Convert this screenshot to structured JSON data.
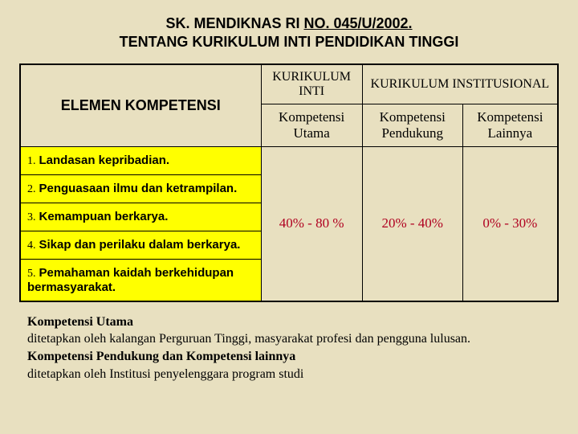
{
  "title_line1_a": "SK. MENDIKNAS RI ",
  "title_line1_b": "NO. 045/U/2002.",
  "title_line2": "TENTANG KURIKULUM INTI PENDIDIKAN TINGGI",
  "header_left": "ELEMEN KOMPETENSI",
  "group1": "KURIKULUM INTI",
  "group2": "KURIKULUM INSTITUSIONAL",
  "sub1": "Kompetensi Utama",
  "sub2": "Kompetensi Pendukung",
  "sub3": "Kompetensi Lainnya",
  "rows": [
    {
      "num": "1.",
      "text": "Landasan kepribadian."
    },
    {
      "num": "2.",
      "text": "Penguasaan ilmu dan ketrampilan."
    },
    {
      "num": "3.",
      "text": "Kemampuan berkarya."
    },
    {
      "num": "4.",
      "text": "Sikap dan perilaku dalam berkarya."
    },
    {
      "num": "5.",
      "text": "Pemahaman kaidah berkehidupan bermasyarakat."
    }
  ],
  "pct1": "40% - 80 %",
  "pct2": "20% - 40%",
  "pct3": "0% - 30%",
  "footer_b1": "Kompetensi Utama",
  "footer_l2": "ditetapkan oleh kalangan Perguruan Tinggi, masyarakat profesi dan  pengguna lulusan.",
  "footer_b3": "Kompetensi Pendukung dan Kompetensi lainnya",
  "footer_l4": "ditetapkan oleh Institusi penyelenggara program studi",
  "colors": {
    "bg": "#e8e0c0",
    "yellow": "#ffff00",
    "red": "#b00020"
  }
}
